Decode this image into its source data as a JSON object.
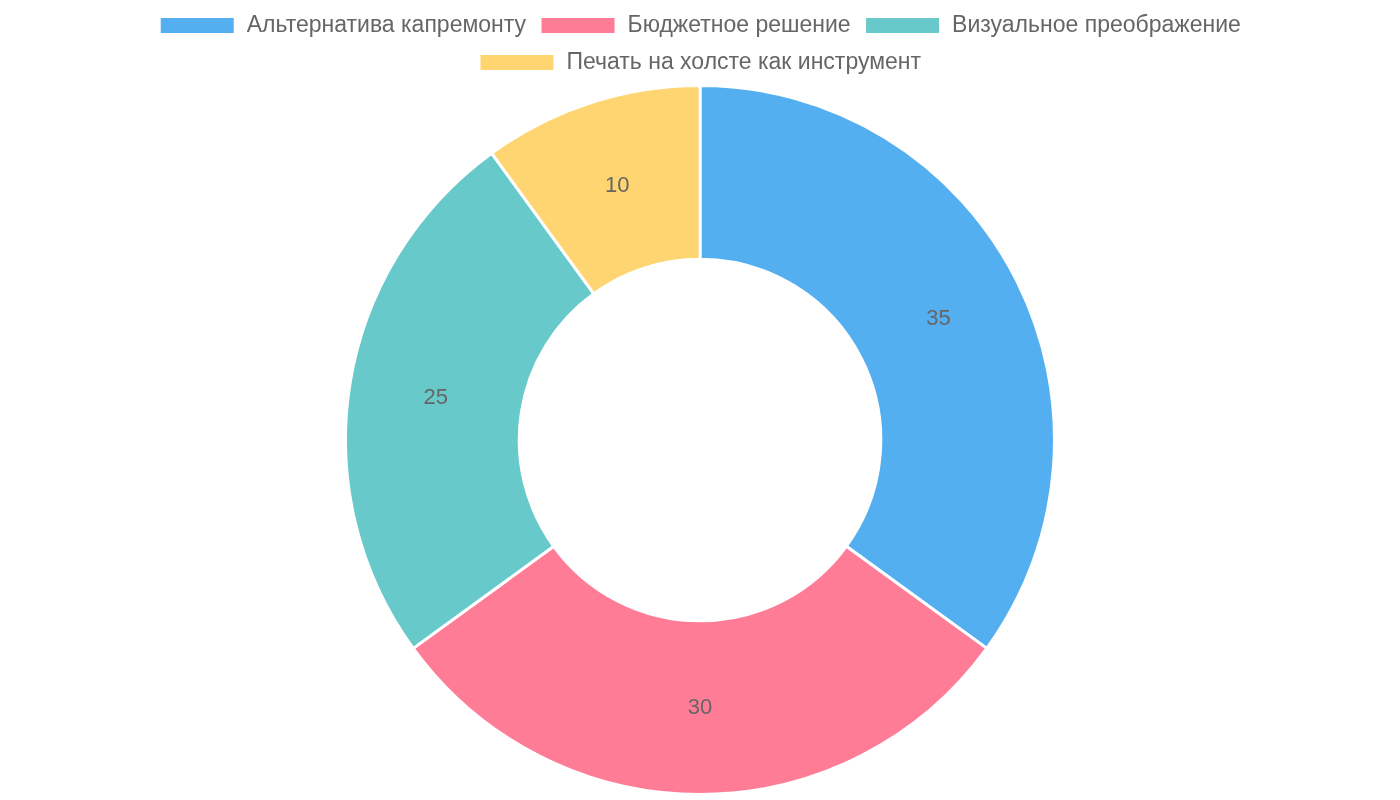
{
  "chart_data": {
    "type": "donut",
    "categories": [
      "Альтернатива капремонту",
      "Бюджетное решение",
      "Визуальное преображение",
      "Печать на холсте как инструмент"
    ],
    "values": [
      35,
      30,
      25,
      10
    ],
    "colors": [
      "#54aff0",
      "#ff7c96",
      "#67c9c9",
      "#ffd572"
    ],
    "legend": "top",
    "data_labels": true
  }
}
